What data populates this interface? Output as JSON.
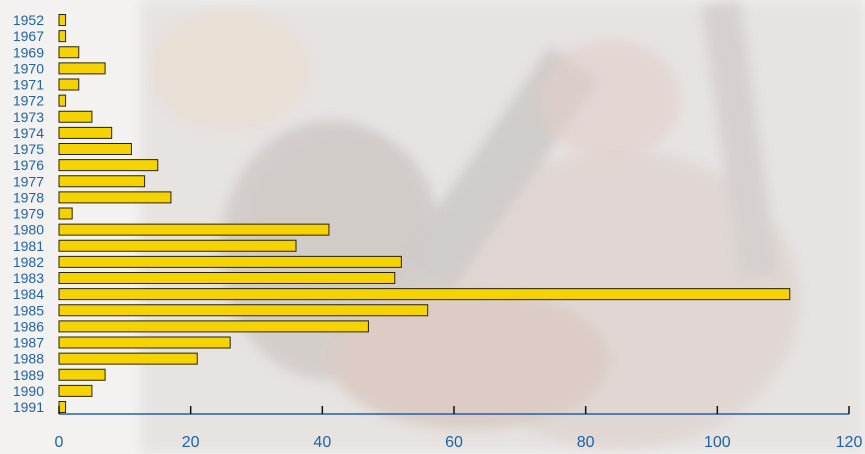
{
  "chart_data": {
    "type": "bar",
    "orientation": "horizontal",
    "categories": [
      "1952",
      "1967",
      "1969",
      "1970",
      "1971",
      "1972",
      "1973",
      "1974",
      "1975",
      "1976",
      "1977",
      "1978",
      "1979",
      "1980",
      "1981",
      "1982",
      "1983",
      "1984",
      "1985",
      "1986",
      "1987",
      "1988",
      "1989",
      "1990",
      "1991"
    ],
    "values": [
      1,
      1,
      3,
      7,
      3,
      1,
      5,
      8,
      11,
      15,
      13,
      17,
      2,
      41,
      36,
      52,
      51,
      111,
      56,
      47,
      26,
      21,
      7,
      5,
      1
    ],
    "title": "",
    "xlabel": "",
    "ylabel": "",
    "xlim": [
      0,
      120
    ],
    "xticks": [
      0,
      20,
      40,
      60,
      80,
      100,
      120
    ],
    "grid": false,
    "legend": "none",
    "bar_color": "#f5d300",
    "bar_edge_color": "#2b2200",
    "axis_color": "#1f62a8",
    "label_color": "#1f62a8",
    "background": "faded photograph"
  }
}
